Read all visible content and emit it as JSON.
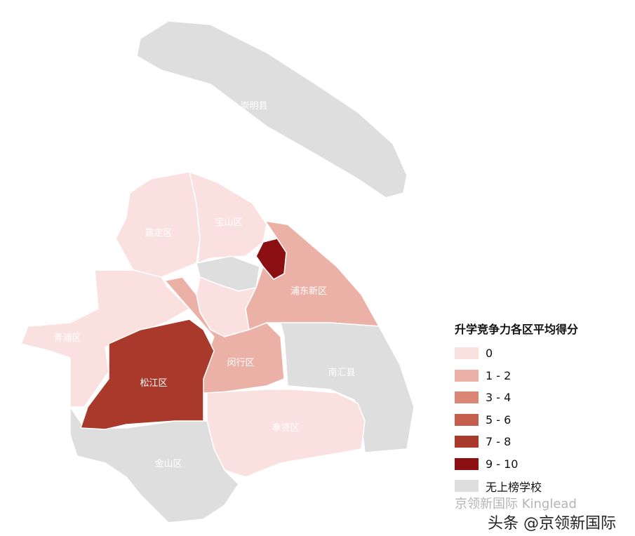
{
  "legend": {
    "title": "升学竞争力各区平均得分",
    "items": [
      {
        "label": "0",
        "color": "#fbe0e0"
      },
      {
        "label": "1 - 2",
        "color": "#ebb1a7"
      },
      {
        "label": "3 - 4",
        "color": "#dc8677"
      },
      {
        "label": "5 - 6",
        "color": "#c65e4e"
      },
      {
        "label": "7 - 8",
        "color": "#a93a2b"
      },
      {
        "label": "9 - 10",
        "color": "#8c0f12"
      },
      {
        "label": "无上榜学校",
        "color": "#dedede"
      }
    ]
  },
  "regions": [
    {
      "name": "崇明县",
      "category": "无上榜学校"
    },
    {
      "name": "嘉定区",
      "category": "0"
    },
    {
      "name": "宝山区",
      "category": "0"
    },
    {
      "name": "青浦区",
      "category": "0"
    },
    {
      "name": "松江区",
      "category": "7 - 8"
    },
    {
      "name": "闵行区",
      "category": "1 - 2"
    },
    {
      "name": "浦东新区",
      "category": "1 - 2"
    },
    {
      "name": "南汇县",
      "category": "无上榜学校"
    },
    {
      "name": "奉贤区",
      "category": "0"
    },
    {
      "name": "金山区",
      "category": "无上榜学校"
    }
  ],
  "watermark": {
    "faint": "京领新国际 Kinglead",
    "main": "头条 @京领新国际"
  }
}
